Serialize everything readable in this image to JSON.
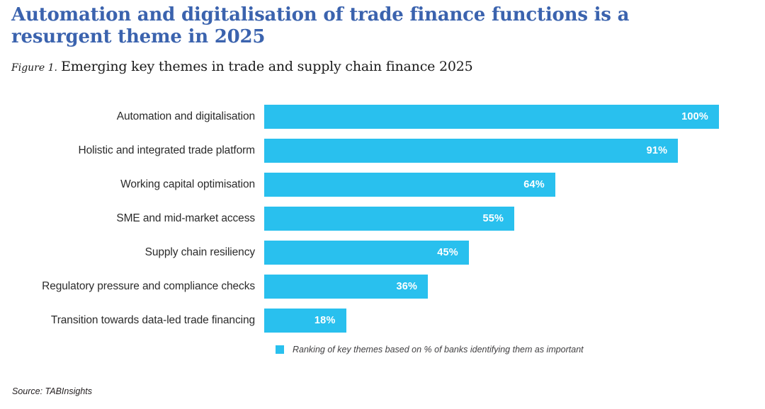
{
  "page": {
    "title": "Automation and digitalisation of trade finance functions is a resurgent theme in 2025",
    "figure_label": "Figure 1.",
    "figure_caption": "Emerging key themes in trade and supply chain finance 2025",
    "source": "Source: TABInsights"
  },
  "colors": {
    "title_blue": "#3b63ae",
    "bar_cyan": "#29c0ee",
    "label_gray": "#2b2b2b",
    "legend_gray": "#414042",
    "value_label_white": "#ffffff"
  },
  "chart_data": {
    "type": "bar",
    "orientation": "horizontal",
    "title": "Emerging key themes in trade and supply chain finance 2025",
    "categories": [
      "Automation and digitalisation",
      "Holistic and integrated trade platform",
      "Working capital optimisation",
      "SME and mid-market access",
      "Supply chain resiliency",
      "Regulatory pressure and compliance checks",
      "Transition towards data-led trade financing"
    ],
    "values": [
      100,
      91,
      64,
      55,
      45,
      36,
      18
    ],
    "value_suffix": "%",
    "xlim": [
      0,
      100
    ],
    "grid": false,
    "legend": "Ranking of key themes based on % of banks identifying them as important",
    "legend_position": "bottom"
  }
}
